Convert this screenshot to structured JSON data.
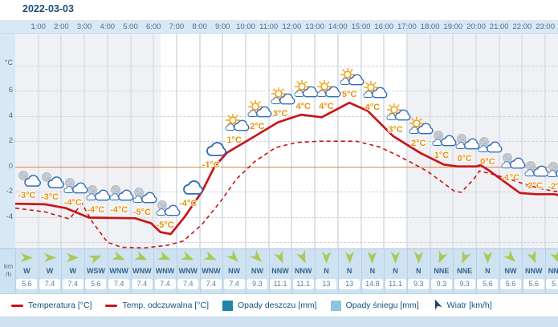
{
  "header": {
    "date": "2022-03-03"
  },
  "axes": {
    "unit_label": "°C",
    "wind_unit": "km/h",
    "wind_unit_lines": [
      "km",
      "/h"
    ]
  },
  "chart_data": {
    "type": "line",
    "title": "2022-03-03",
    "x_labels": [
      "1:00",
      "2:00",
      "3:00",
      "4:00",
      "5:00",
      "6:00",
      "7:00",
      "8:00",
      "9:00",
      "10:00",
      "11:00",
      "12:00",
      "13:00",
      "14:00",
      "15:00",
      "16:00",
      "17:00",
      "18:00",
      "19:00",
      "20:00",
      "21:00",
      "22:00",
      "23:00"
    ],
    "ylabel": "°C",
    "y_ticks": [
      6,
      4,
      2,
      0,
      -2,
      -4
    ],
    "ylim": [
      -6.5,
      10.5
    ],
    "grid": true,
    "day_band_hours": [
      6.3,
      17.0
    ],
    "icon_temps_c": [
      -3,
      -3,
      -4,
      -4,
      -4,
      -5,
      -5,
      -4,
      -1,
      1,
      2,
      3,
      4,
      4,
      5,
      4,
      3,
      2,
      1,
      0,
      0,
      -1,
      -2,
      -2
    ],
    "series": [
      {
        "name": "Temperatura [°C]",
        "style": "solid",
        "color": "#c91518",
        "points": [
          [
            0,
            -2.95
          ],
          [
            1.3,
            -3.0
          ],
          [
            2.2,
            -3.3
          ],
          [
            3.2,
            -4.05
          ],
          [
            5.2,
            -4.1
          ],
          [
            5.9,
            -4.5
          ],
          [
            6.3,
            -5.2
          ],
          [
            6.75,
            -5.35
          ],
          [
            7.35,
            -4.0
          ],
          [
            8.1,
            -2.0
          ],
          [
            8.65,
            0.0
          ],
          [
            9.2,
            1.1
          ],
          [
            10.4,
            2.4
          ],
          [
            11.4,
            3.5
          ],
          [
            12.4,
            4.1
          ],
          [
            13.3,
            3.9
          ],
          [
            14.5,
            5.05
          ],
          [
            15.3,
            4.4
          ],
          [
            16.4,
            2.4
          ],
          [
            17.6,
            1.05
          ],
          [
            18.6,
            0.15
          ],
          [
            19.2,
            0.0
          ],
          [
            20.0,
            0.0
          ],
          [
            20.2,
            0.1
          ],
          [
            20.5,
            -0.25
          ],
          [
            21.0,
            -0.9
          ],
          [
            21.9,
            -2.1
          ],
          [
            22.6,
            -2.2
          ],
          [
            23.4,
            -2.2
          ],
          [
            24,
            -2.45
          ]
        ]
      },
      {
        "name": "Temp. odczuwalna [°C]",
        "style": "dashed",
        "color": "#c91518",
        "points": [
          [
            0,
            -3.3
          ],
          [
            1.3,
            -3.6
          ],
          [
            2.35,
            -4.15
          ],
          [
            2.9,
            -2.95
          ],
          [
            3.35,
            -4.4
          ],
          [
            4.0,
            -6.0
          ],
          [
            4.6,
            -6.4
          ],
          [
            5.6,
            -6.45
          ],
          [
            6.6,
            -6.25
          ],
          [
            7.3,
            -5.9
          ],
          [
            8.1,
            -4.6
          ],
          [
            8.9,
            -2.8
          ],
          [
            9.6,
            -1.0
          ],
          [
            10.4,
            0.4
          ],
          [
            11.3,
            1.5
          ],
          [
            12.2,
            1.9
          ],
          [
            13.2,
            2.0
          ],
          [
            14.8,
            2.0
          ],
          [
            15.8,
            1.55
          ],
          [
            16.5,
            0.95
          ],
          [
            17.2,
            0.3
          ],
          [
            17.9,
            -0.4
          ],
          [
            18.5,
            -1.2
          ],
          [
            19.05,
            -1.95
          ],
          [
            19.35,
            -2.05
          ],
          [
            19.9,
            -1.0
          ],
          [
            20.15,
            -0.35
          ],
          [
            21.3,
            -0.9
          ],
          [
            22.1,
            -1.4
          ],
          [
            22.9,
            -1.8
          ],
          [
            24,
            -2.15
          ]
        ]
      }
    ]
  },
  "hours": [
    {
      "temp": "-3°C",
      "icon": "moon-cloud",
      "wind_dir": "W",
      "wind_speed": "5.6"
    },
    {
      "temp": "-3°C",
      "icon": "moon-cloud",
      "wind_dir": "W",
      "wind_speed": "7.4"
    },
    {
      "temp": "-4°C",
      "icon": "moon-clouds",
      "wind_dir": "W",
      "wind_speed": "7.4"
    },
    {
      "temp": "-4°C",
      "icon": "moon-clouds",
      "wind_dir": "WSW",
      "wind_speed": "5.6"
    },
    {
      "temp": "-4°C",
      "icon": "moon-clouds",
      "wind_dir": "WNW",
      "wind_speed": "7.4"
    },
    {
      "temp": "-5°C",
      "icon": "moon-clouds",
      "wind_dir": "WNW",
      "wind_speed": "7.4"
    },
    {
      "temp": "-5°C",
      "icon": "moon-clouds",
      "wind_dir": "WNW",
      "wind_speed": "7.4"
    },
    {
      "temp": "-4°C",
      "icon": "cloud",
      "wind_dir": "WNW",
      "wind_speed": "7.4"
    },
    {
      "temp": "-1°C",
      "icon": "cloud",
      "wind_dir": "WNW",
      "wind_speed": "7.4"
    },
    {
      "temp": "1°C",
      "icon": "sun-cloud",
      "wind_dir": "NW",
      "wind_speed": "7.4"
    },
    {
      "temp": "2°C",
      "icon": "sun-cloud",
      "wind_dir": "NW",
      "wind_speed": "9.3"
    },
    {
      "temp": "3°C",
      "icon": "sun-cloud",
      "wind_dir": "NNW",
      "wind_speed": "11.1"
    },
    {
      "temp": "4°C",
      "icon": "sun-cloud",
      "wind_dir": "NNW",
      "wind_speed": "11.1"
    },
    {
      "temp": "4°C",
      "icon": "sun-cloud",
      "wind_dir": "N",
      "wind_speed": "13"
    },
    {
      "temp": "5°C",
      "icon": "sun-cloud",
      "wind_dir": "N",
      "wind_speed": "13"
    },
    {
      "temp": "4°C",
      "icon": "sun-cloud",
      "wind_dir": "N",
      "wind_speed": "14.8"
    },
    {
      "temp": "3°C",
      "icon": "sun-cloud",
      "wind_dir": "N",
      "wind_speed": "11.1"
    },
    {
      "temp": "2°C",
      "icon": "sun-cloud",
      "wind_dir": "N",
      "wind_speed": "9.3"
    },
    {
      "temp": "1°C",
      "icon": "moon-clouds",
      "wind_dir": "NNE",
      "wind_speed": "9.3"
    },
    {
      "temp": "0°C",
      "icon": "moon-clouds",
      "wind_dir": "NNE",
      "wind_speed": "9.3"
    },
    {
      "temp": "0°C",
      "icon": "moon-clouds",
      "wind_dir": "N",
      "wind_speed": "5.6"
    },
    {
      "temp": "-1°C",
      "icon": "moon-clouds",
      "wind_dir": "NW",
      "wind_speed": "5.6"
    },
    {
      "temp": "-2°C",
      "icon": "moon-clouds",
      "wind_dir": "NNW",
      "wind_speed": "5.6"
    },
    {
      "temp": "-2°C",
      "icon": "moon-clouds",
      "wind_dir": "NNW",
      "wind_speed": "5.6"
    }
  ],
  "legend": {
    "items": [
      {
        "label": "Temperatura [°C]",
        "marker": "line",
        "color": "#c91518"
      },
      {
        "label": "Temp. odczuwalna [°C]",
        "marker": "line",
        "color": "#c91518"
      },
      {
        "label": "Opady deszczu [mm]",
        "marker": "square",
        "color": "#1e86a8"
      },
      {
        "label": "Opady śniegu [mm]",
        "marker": "square",
        "color": "#8ec6dd"
      },
      {
        "label": "Wiatr [km/h]",
        "marker": "arrow",
        "color": "#1d4266"
      }
    ]
  },
  "colors": {
    "accent_red": "#c91518",
    "temp_label_orange": "#e8920e",
    "zero_line_orange": "#e0873a",
    "night_bg": "#f0f1f4",
    "day_bg": "#ffffff",
    "band_blue": "#d8e8f5",
    "wind_band_blue": "#cee2f1",
    "wind_arrow_green": "#a6cb55",
    "text_navy": "#15527e"
  }
}
